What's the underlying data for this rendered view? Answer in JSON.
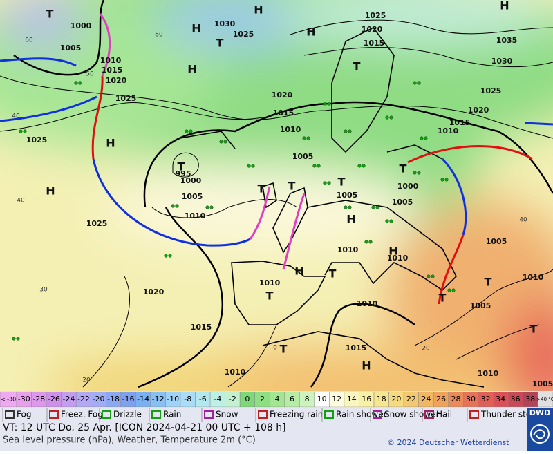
{
  "map": {
    "pressure_labels": [
      "1000",
      "1005",
      "1010",
      "1015",
      "1020",
      "1025",
      "1025",
      "1030",
      "1025",
      "1025",
      "1020",
      "1015",
      "1020",
      "1015",
      "1010",
      "1005",
      "995",
      "1000",
      "1005",
      "1010",
      "1025",
      "1005",
      "1010",
      "1010",
      "1000",
      "1005",
      "1010",
      "1015",
      "1020",
      "1025",
      "1030",
      "1035",
      "1005",
      "1005",
      "1010",
      "1010",
      "1010",
      "1020",
      "1015",
      "1015",
      "1010",
      "1010",
      "1005"
    ],
    "pressure_systems": [
      "H",
      "H",
      "H",
      "H",
      "T",
      "T",
      "T",
      "H",
      "H",
      "T",
      "T",
      "T",
      "T",
      "T",
      "H",
      "H",
      "H",
      "T",
      "T",
      "T",
      "T",
      "T",
      "T",
      "H",
      "H"
    ],
    "temperature_labels": [
      "60",
      "60",
      "50",
      "40",
      "40",
      "30",
      "20",
      "40",
      "20",
      "0"
    ]
  },
  "temperature_scale": {
    "low_label": "< -30",
    "values": [
      -30,
      -28,
      -26,
      -24,
      -22,
      -20,
      -18,
      -16,
      -14,
      -12,
      -10,
      -8,
      -6,
      -4,
      -2,
      0,
      2,
      4,
      6,
      8,
      10,
      12,
      14,
      16,
      18,
      20,
      22,
      24,
      26,
      28,
      30,
      32,
      34,
      36,
      38
    ],
    "high_label": ">40 °C",
    "colors": [
      "#e8a0ec",
      "#dc98ea",
      "#cf90ea",
      "#c39ef0",
      "#b3a8f2",
      "#a2aef4",
      "#8ca8f2",
      "#7ea0ee",
      "#7ab0f2",
      "#88c0f4",
      "#9ed2f6",
      "#aadcf8",
      "#b4e8f0",
      "#bcf0e4",
      "#c4f0d0",
      "#7ed87a",
      "#8edf84",
      "#a2e692",
      "#b6eca6",
      "#cef2be",
      "#ffffff",
      "#fcfce0",
      "#faf6c0",
      "#f8f0a4",
      "#f6e690",
      "#f4da80",
      "#f2c870",
      "#f0b864",
      "#eea25c",
      "#ea8a58",
      "#e47458",
      "#de6058",
      "#d85058",
      "#c84a58",
      "#b04458"
    ]
  },
  "legend": {
    "items": [
      "Fog",
      "Freez. Fog",
      "Drizzle",
      "Rain",
      "Snow",
      "Freezing rain",
      "Rain shower",
      "Snow shower",
      "Hail",
      "Thunder storm"
    ]
  },
  "footer": {
    "valid_time": "VT: 12 UTC Do.  25 Apr. [ICON 2024-04-21  00 UTC + 108 h]",
    "description": "Sea level pressure (hPa), Weather, Temperature 2m (°C)",
    "copyright": "© 2024 Deutscher Wetterdienst",
    "logo": "DWD"
  }
}
